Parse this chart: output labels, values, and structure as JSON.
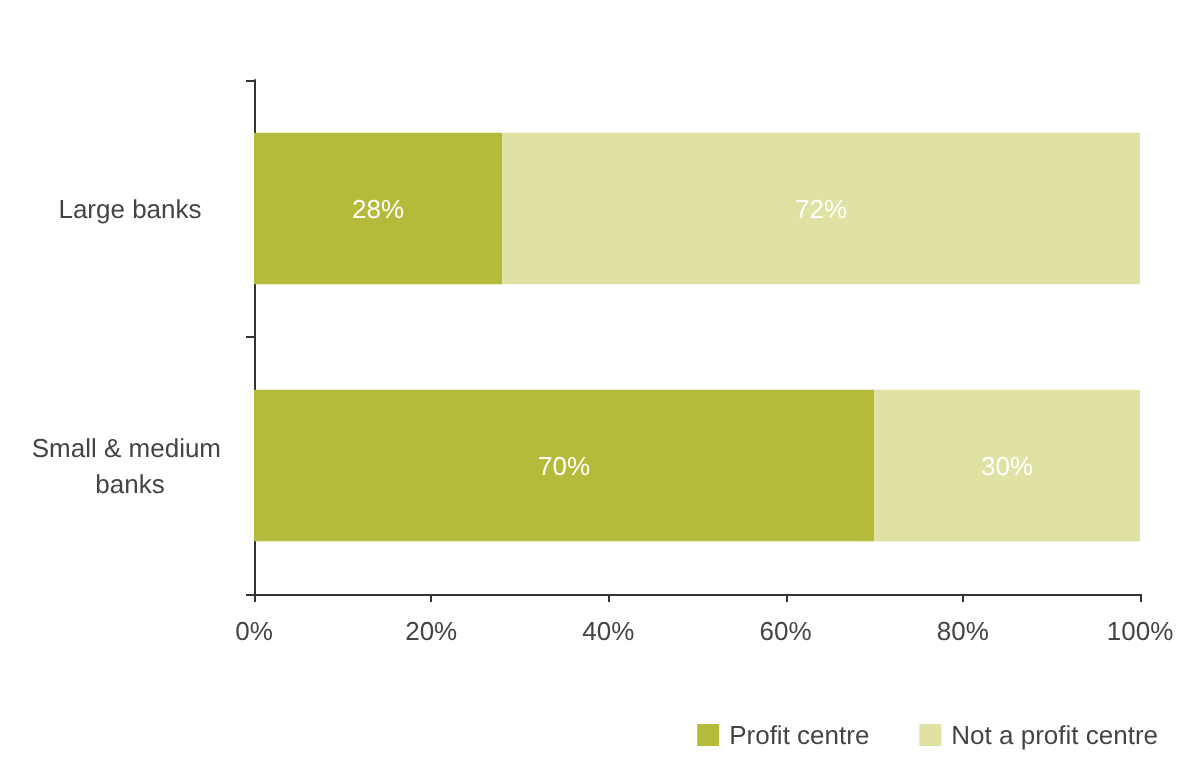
{
  "chart_data": {
    "type": "bar",
    "orientation": "horizontal",
    "stacked": true,
    "categories": [
      "Large banks",
      "Small & medium banks"
    ],
    "series": [
      {
        "name": "Profit centre",
        "color": "#b4bb3b",
        "values": [
          28,
          70
        ],
        "value_labels": [
          "28%",
          "70%"
        ]
      },
      {
        "name": "Not a profit centre",
        "color": "#dfe2a2",
        "values": [
          72,
          30
        ],
        "value_labels": [
          "72%",
          "30%"
        ]
      }
    ],
    "xlim": [
      0,
      100
    ],
    "xticks": [
      {
        "value": 0,
        "label": "0%"
      },
      {
        "value": 20,
        "label": "20%"
      },
      {
        "value": 40,
        "label": "40%"
      },
      {
        "value": 60,
        "label": "60%"
      },
      {
        "value": 80,
        "label": "80%"
      },
      {
        "value": 100,
        "label": "100%"
      }
    ],
    "grid": false,
    "legend": "bottom right"
  }
}
